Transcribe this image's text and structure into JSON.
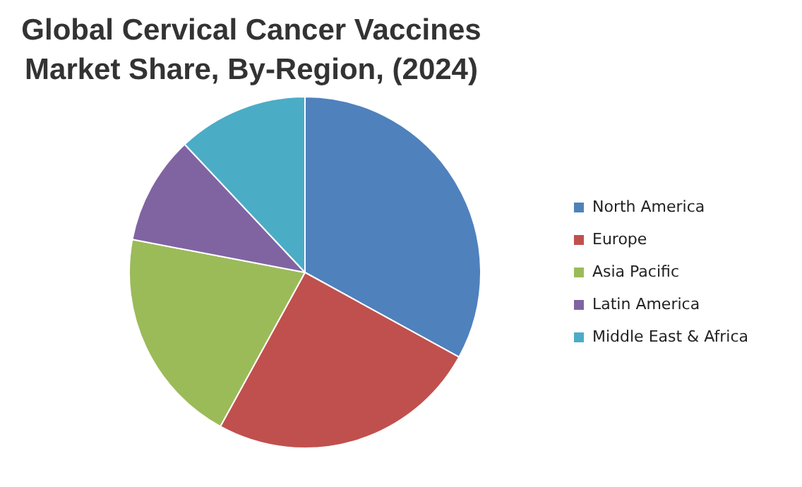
{
  "chart_data": {
    "type": "pie",
    "title": "Global Cervical Cancer Vaccines Market Share, By-Region, (2024)",
    "categories": [
      "North America",
      "Europe",
      "Asia Pacific",
      "Latin America",
      "Middle East & Africa"
    ],
    "values": [
      33,
      25,
      20,
      10,
      12
    ],
    "colors": [
      "#4f81bd",
      "#c0504d",
      "#9bbb59",
      "#8064a2",
      "#4bacc6"
    ],
    "legend": "right"
  }
}
